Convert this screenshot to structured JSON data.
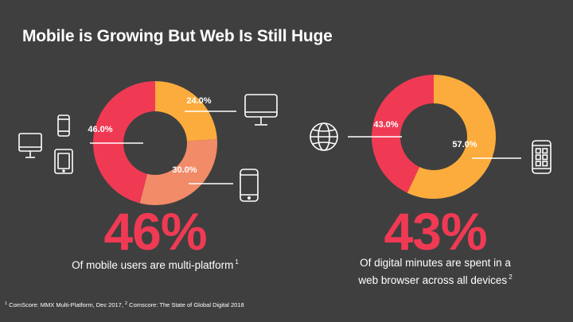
{
  "slide": {
    "title": "Mobile is Growing But Web Is Still Huge",
    "footnote": {
      "m1": "1",
      "t1": " ComScore: MMX Multi-Platform, Dec 2017, ",
      "m2": "2",
      "t2": " Comscore: The State of Global Digital 2018"
    }
  },
  "colors": {
    "background": "#3f3f3f",
    "red": "#f03a54",
    "orange": "#fbac3c",
    "salmon": "#f28b68",
    "white": "#ffffff"
  },
  "left": {
    "big_stat": "46%",
    "caption": "Of mobile users are multi-platform",
    "caption_mark": "1",
    "icons": [
      "monitor-icon",
      "phone-icon",
      "monitor-icon",
      "tablet-icon",
      "phone-icon"
    ]
  },
  "right": {
    "big_stat": "43%",
    "caption_line1": "Of digital minutes are spent in a",
    "caption_line2": "web browser across all devices",
    "caption_mark": "2",
    "icons": [
      "globe-icon",
      "app-grid-icon"
    ]
  },
  "chart_data": [
    {
      "type": "pie",
      "donut": true,
      "categories": [
        "24.0%",
        "30.0%",
        "46.0%"
      ],
      "values": [
        24.0,
        30.0,
        46.0
      ],
      "colors": [
        "#fbac3c",
        "#f28b68",
        "#f03a54"
      ]
    },
    {
      "type": "pie",
      "donut": true,
      "categories": [
        "57.0%",
        "43.0%"
      ],
      "values": [
        57.0,
        43.0
      ],
      "colors": [
        "#fbac3c",
        "#f03a54"
      ]
    }
  ]
}
